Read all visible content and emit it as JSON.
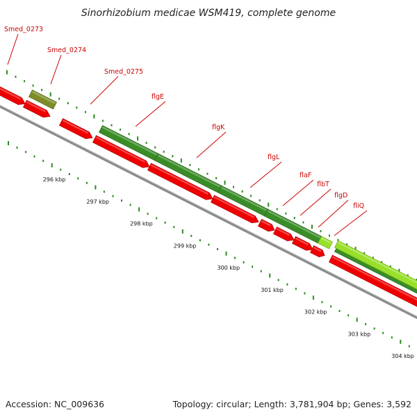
{
  "title": "Sinorhizobium medicae WSM419, complete genome",
  "footer": {
    "accession": "Accession: NC_009636",
    "summary": "Topology: circular; Length: 3,781,904 bp; Genes: 3,592"
  },
  "colors": {
    "forward_gene": "#3a8c27",
    "forward_highlight": "#99e02a",
    "forward_pseudo": "#7c8c27",
    "reverse_gene": "#ee0000",
    "backbone": "#808080",
    "tick": "#2a8c1e",
    "label": "#cc0000"
  },
  "axis": {
    "ticks": [
      {
        "label": "296 kbp",
        "kbp": 296
      },
      {
        "label": "297 kbp",
        "kbp": 297
      },
      {
        "label": "298 kbp",
        "kbp": 298
      },
      {
        "label": "299 kbp",
        "kbp": 299
      },
      {
        "label": "300 kbp",
        "kbp": 300
      },
      {
        "label": "301 kbp",
        "kbp": 301
      },
      {
        "label": "302 kbp",
        "kbp": 302
      },
      {
        "label": "303 kbp",
        "kbp": 303
      },
      {
        "label": "304 kbp",
        "kbp": 304
      }
    ]
  },
  "gene_labels": [
    {
      "text": "Smed_0273"
    },
    {
      "text": "Smed_0274"
    },
    {
      "text": "Smed_0275"
    },
    {
      "text": "flgE"
    },
    {
      "text": "flgK"
    },
    {
      "text": "flgL"
    },
    {
      "text": "flaF"
    },
    {
      "text": "flbT"
    },
    {
      "text": "flgD"
    },
    {
      "text": "fliQ"
    }
  ]
}
